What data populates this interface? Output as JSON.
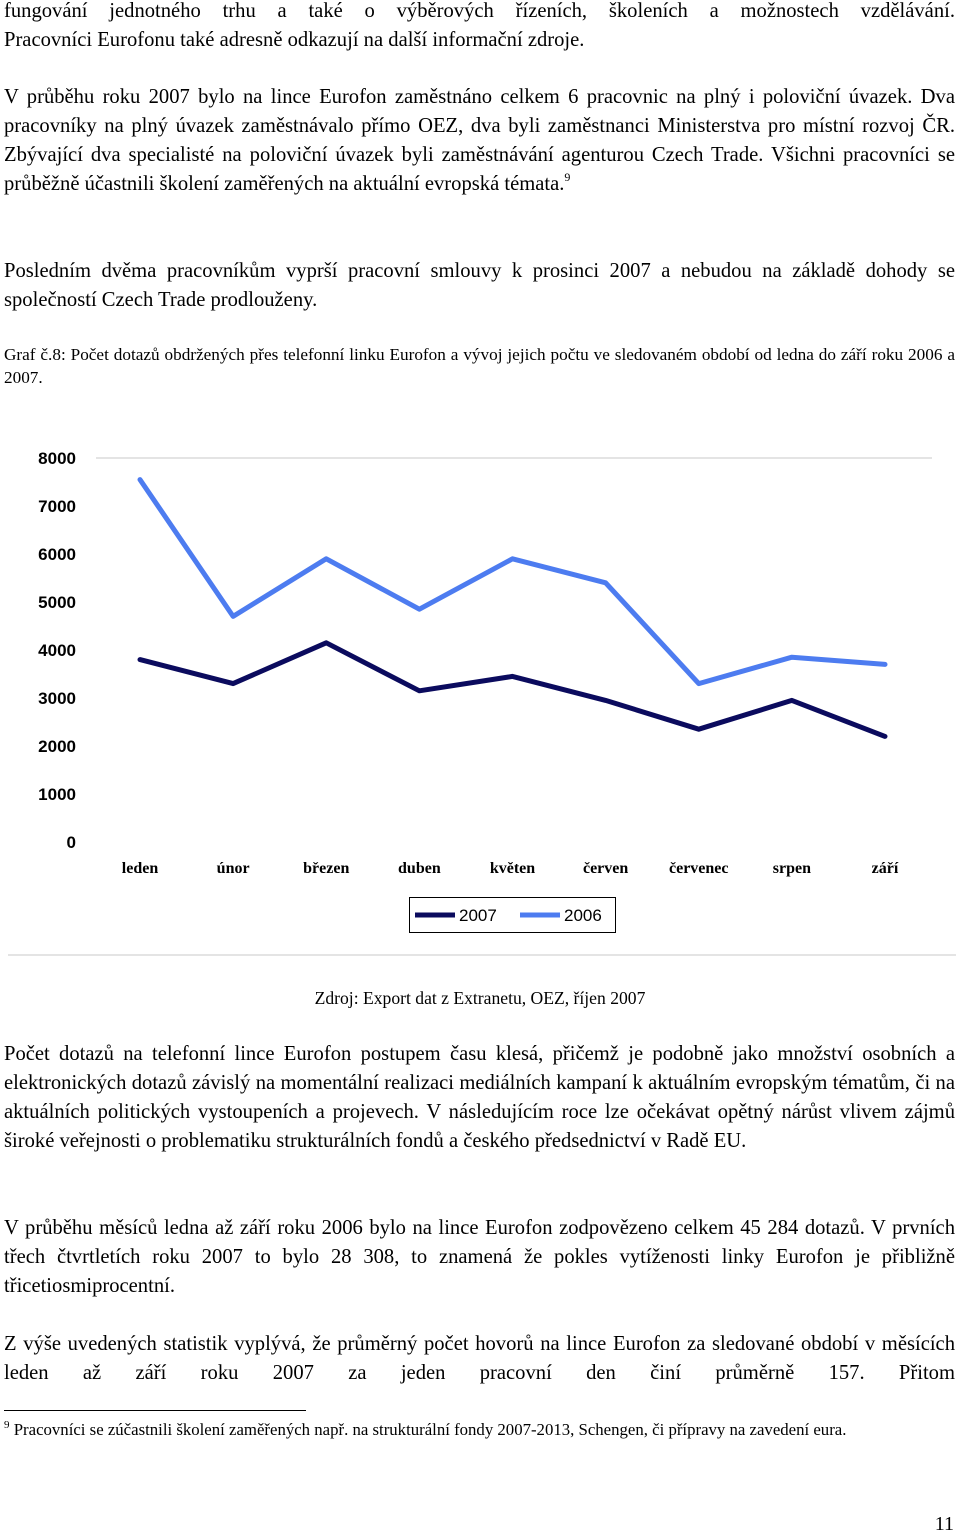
{
  "intro": {
    "line1": "fungování jednotného trhu a také o výběrových řízeních, školeních a možnostech vzdělávání.",
    "line2": "Pracovníci Eurofonu také adresně odkazují na další informační zdroje."
  },
  "para_staff": {
    "text": "V průběhu roku 2007 bylo na lince Eurofon zaměstnáno celkem 6 pracovnic na plný i poloviční úvazek. Dva pracovníky na plný úvazek zaměstnávalo přímo OEZ, dva byli zaměstnanci Ministerstva pro místní rozvoj ČR. Zbývající dva specialisté na poloviční úvazek byli zaměstnávání agenturou Czech Trade. Všichni pracovníci se průběžně účastnili školení zaměřených na aktuální evropská témata.",
    "footnote_ref": "9"
  },
  "para_contracts": "Posledním dvěma pracovníkům vyprší pracovní smlouvy k prosinci 2007 a nebudou na základě dohody se společností Czech Trade prodlouženy.",
  "figure_caption": "Graf č.8: Počet dotazů obdržených přes telefonní linku Eurofon a vývoj jejich počtu ve sledovaném období od ledna do září roku 2006 a 2007.",
  "chart_data": {
    "type": "line",
    "categories": [
      "leden",
      "únor",
      "březen",
      "duben",
      "květen",
      "červen",
      "červenec",
      "srpen",
      "září"
    ],
    "series": [
      {
        "name": "2007",
        "color": "#0b0b5e",
        "values": [
          3800,
          3300,
          4150,
          3150,
          3450,
          2950,
          2350,
          2950,
          2200
        ]
      },
      {
        "name": "2006",
        "color": "#4d7cf0",
        "values": [
          7550,
          4700,
          5900,
          4850,
          5900,
          5400,
          3300,
          3850,
          3700
        ]
      }
    ],
    "yticks": [
      0,
      1000,
      2000,
      3000,
      4000,
      5000,
      6000,
      7000,
      8000
    ],
    "ylim": [
      0,
      8000
    ],
    "grid": "top-line-only",
    "legend_position": "bottom"
  },
  "source": "Zdroj: Export dat z Extranetu, OEZ, říjen 2007",
  "para_trend": "Počet dotazů na telefonní lince Eurofon postupem času klesá, přičemž je podobně jako množství osobních a elektronických dotazů závislý na momentální realizaci mediálních kampaní k aktuálním evropským tématům, či na aktuálních politických vystoupeních a projevech. V následujícím roce lze očekávat opětný nárůst vlivem zájmů široké veřejnosti o problematiku strukturálních fondů a českého předsednictví v Radě EU.",
  "para_totals": "V průběhu měsíců ledna až září roku 2006 bylo na lince Eurofon zodpovězeno celkem 45 284 dotazů. V prvních třech čtvrtletích roku 2007 to bylo 28 308, to znamená že pokles vytíženosti linky Eurofon je přibližně třicetiosmiprocentní.",
  "para_average": "Z výše uvedených statistik vyplývá, že průměrný počet hovorů na lince Eurofon za sledované období v měsících leden až září roku 2007 za jeden pracovní den činí průměrně 157. Přitom",
  "footnote": {
    "number": "9",
    "text": "Pracovníci se zúčastnili školení zaměřených např. na strukturální fondy 2007-2013, Schengen, či přípravy na zavedení eura."
  },
  "page_number": "11"
}
